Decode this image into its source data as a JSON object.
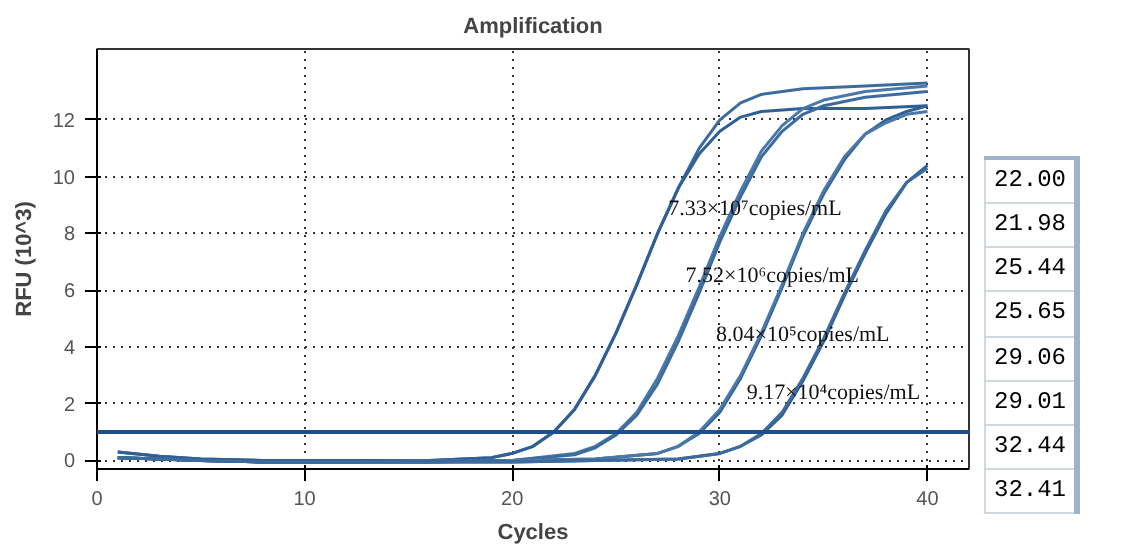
{
  "chart_data": {
    "type": "line",
    "title": "Amplification",
    "xlabel": "Cycles",
    "ylabel": "RFU (10^3)",
    "xlim": [
      0,
      42
    ],
    "ylim": [
      -0.3,
      14.5
    ],
    "xticks": [
      0,
      10,
      20,
      30,
      40
    ],
    "yticks": [
      0,
      2,
      4,
      6,
      8,
      10,
      12
    ],
    "grid": true,
    "marker": "none",
    "line_style": "solid",
    "series": [
      {
        "color": "#3d6b9e",
        "x": [
          1,
          3,
          5,
          8,
          12,
          16,
          19,
          20,
          21,
          22,
          23,
          24,
          25,
          26,
          27,
          28,
          29,
          30,
          31,
          32,
          34,
          37,
          40
        ],
        "values": [
          0.3,
          0.15,
          0.05,
          0,
          0,
          0,
          0.1,
          0.25,
          0.5,
          1.0,
          1.8,
          3.0,
          4.5,
          6.2,
          8.0,
          9.6,
          11.0,
          12.0,
          12.6,
          12.9,
          13.1,
          13.2,
          13.3
        ]
      },
      {
        "color": "#2f5f94",
        "x": [
          1,
          3,
          5,
          8,
          12,
          16,
          19,
          20,
          21,
          22,
          23,
          24,
          25,
          26,
          27,
          28,
          29,
          30,
          31,
          32,
          34,
          37,
          40
        ],
        "values": [
          0.3,
          0.15,
          0.05,
          0,
          0,
          0,
          0.1,
          0.25,
          0.5,
          1.0,
          1.8,
          3.0,
          4.5,
          6.2,
          8.0,
          9.6,
          10.8,
          11.6,
          12.1,
          12.3,
          12.4,
          12.4,
          12.5
        ]
      },
      {
        "color": "#4a78a8",
        "x": [
          1,
          3,
          5,
          8,
          12,
          16,
          20,
          23,
          24,
          25,
          26,
          27,
          28,
          29,
          30,
          31,
          32,
          33,
          34,
          35,
          37,
          40
        ],
        "values": [
          0.1,
          0.05,
          0,
          -0.05,
          -0.05,
          0,
          0,
          0.25,
          0.5,
          0.95,
          1.7,
          2.9,
          4.4,
          6.1,
          7.9,
          9.5,
          10.9,
          11.8,
          12.4,
          12.7,
          13.0,
          13.2
        ]
      },
      {
        "color": "#3d6b9e",
        "x": [
          1,
          3,
          5,
          8,
          12,
          16,
          20,
          23,
          24,
          25,
          26,
          27,
          28,
          29,
          30,
          31,
          32,
          33,
          34,
          35,
          37,
          40
        ],
        "values": [
          0.1,
          0.05,
          0,
          -0.05,
          -0.05,
          0,
          0,
          0.2,
          0.45,
          0.9,
          1.6,
          2.7,
          4.2,
          5.9,
          7.7,
          9.3,
          10.7,
          11.6,
          12.2,
          12.5,
          12.8,
          13.0
        ]
      },
      {
        "color": "#2f5f94",
        "x": [
          1,
          3,
          5,
          8,
          12,
          16,
          20,
          24,
          27,
          28,
          29,
          30,
          31,
          32,
          33,
          34,
          35,
          36,
          37,
          38,
          39,
          40
        ],
        "values": [
          0.1,
          0.05,
          0,
          -0.05,
          -0.05,
          -0.05,
          0,
          0.05,
          0.25,
          0.5,
          0.95,
          1.7,
          2.9,
          4.4,
          6.1,
          7.9,
          9.4,
          10.6,
          11.5,
          12.0,
          12.3,
          12.5
        ]
      },
      {
        "color": "#4a78a8",
        "x": [
          1,
          3,
          5,
          8,
          12,
          16,
          20,
          24,
          27,
          28,
          29,
          30,
          31,
          32,
          33,
          34,
          35,
          36,
          37,
          38,
          39,
          40
        ],
        "values": [
          0.1,
          0.05,
          0,
          -0.05,
          -0.05,
          -0.05,
          0,
          0.05,
          0.25,
          0.5,
          1.0,
          1.8,
          3.0,
          4.5,
          6.2,
          8.0,
          9.5,
          10.7,
          11.5,
          11.9,
          12.2,
          12.3
        ]
      },
      {
        "color": "#2f5f94",
        "x": [
          1,
          3,
          5,
          8,
          12,
          16,
          20,
          24,
          28,
          30,
          31,
          32,
          33,
          34,
          35,
          36,
          37,
          38,
          39,
          40
        ],
        "values": [
          0.1,
          0.05,
          0,
          -0.05,
          -0.05,
          -0.05,
          -0.05,
          0,
          0.05,
          0.25,
          0.5,
          0.9,
          1.6,
          2.8,
          4.2,
          5.8,
          7.3,
          8.7,
          9.8,
          10.4
        ]
      },
      {
        "color": "#3d6b9e",
        "x": [
          1,
          3,
          5,
          8,
          12,
          16,
          20,
          24,
          28,
          30,
          31,
          32,
          33,
          34,
          35,
          36,
          37,
          38,
          39,
          40
        ],
        "values": [
          0.1,
          0.05,
          0,
          -0.05,
          -0.05,
          -0.05,
          -0.05,
          0,
          0.05,
          0.25,
          0.5,
          0.95,
          1.7,
          2.9,
          4.3,
          5.9,
          7.4,
          8.8,
          9.8,
          10.3
        ]
      }
    ],
    "ref_lines": [
      {
        "axis": "y",
        "value": 1.0,
        "color": "#1f4e8a"
      }
    ],
    "annotations": [
      "7.33×10⁷copies/mL",
      "7.52×10⁶copies/mL",
      "8.04×10⁵copies/mL",
      "9.17×10⁴copies/mL",
      "22.00",
      "21.98",
      "25.44",
      "25.65",
      "29.06",
      "29.01",
      "32.44",
      "32.41"
    ]
  }
}
